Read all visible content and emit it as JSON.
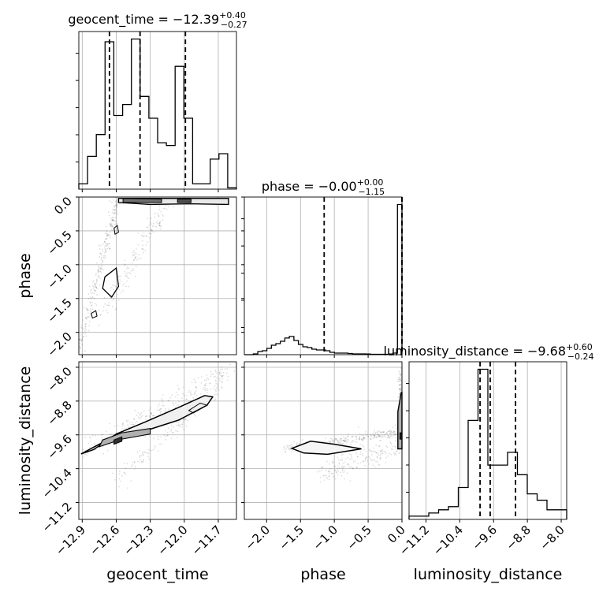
{
  "chart_data": {
    "type": "corner",
    "parameters": [
      "geocent_time",
      "phase",
      "luminosity_distance"
    ],
    "titles": [
      {
        "param": "geocent_time",
        "prefix": "geocent_time = ",
        "median": "−12.39",
        "plus": "+0.40",
        "minus": "−0.27"
      },
      {
        "param": "phase",
        "prefix": "phase = ",
        "median": "−0.00",
        "plus": "+0.00",
        "minus": "−1.15"
      },
      {
        "param": "luminosity_distance",
        "prefix": "luminosity_distance = ",
        "median": "−9.68",
        "plus": "+0.60",
        "minus": "−0.24"
      }
    ],
    "axis_labels": {
      "x": [
        "geocent_time",
        "phase",
        "luminosity_distance"
      ],
      "y": [
        "phase",
        "luminosity_distance"
      ]
    },
    "ranges": {
      "geocent_time": [
        -12.93,
        -11.54
      ],
      "phase": [
        -2.33,
        0.0
      ],
      "luminosity_distance": [
        -11.6,
        -7.87
      ]
    },
    "ticks": {
      "geocent_time": [
        {
          "v": -12.9,
          "t": "−12.9"
        },
        {
          "v": -12.6,
          "t": "−12.6"
        },
        {
          "v": -12.3,
          "t": "−12.3"
        },
        {
          "v": -12.0,
          "t": "−12.0"
        },
        {
          "v": -11.7,
          "t": "−11.7"
        }
      ],
      "phase": [
        {
          "v": -2.0,
          "t": "−2.0"
        },
        {
          "v": -1.5,
          "t": "−1.5"
        },
        {
          "v": -1.0,
          "t": "−1.0"
        },
        {
          "v": -0.5,
          "t": "−0.5"
        },
        {
          "v": 0.0,
          "t": "0.0"
        }
      ],
      "luminosity_distance": [
        {
          "v": -11.2,
          "t": "−11.2"
        },
        {
          "v": -10.4,
          "t": "−10.4"
        },
        {
          "v": -9.6,
          "t": "−9.6"
        },
        {
          "v": -8.8,
          "t": "−8.8"
        },
        {
          "v": -8.0,
          "t": "−8.0"
        }
      ]
    },
    "quantiles": {
      "geocent_time": [
        -12.66,
        -12.39,
        -11.99
      ],
      "phase": [
        -1.15,
        -0.0,
        0.0
      ],
      "luminosity_distance": [
        -9.92,
        -9.68,
        -9.08
      ]
    },
    "hist1d": {
      "geocent_time": {
        "counts": [
          0.2,
          1.2,
          2.0,
          5.4,
          2.7,
          3.1,
          5.5,
          3.4,
          2.6,
          1.7,
          1.6,
          4.5,
          2.6,
          0.2,
          0.2,
          1.1,
          1.3,
          0.05
        ]
      },
      "phase": {
        "counts": [
          0.0,
          0.0,
          0.1,
          0.4,
          0.5,
          0.8,
          1.2,
          1.4,
          1.7,
          2.1,
          2.3,
          1.8,
          1.3,
          1.0,
          0.9,
          0.7,
          0.6,
          0.6,
          0.5,
          0.3,
          0.2,
          0.2,
          0.2,
          0.15,
          0.1,
          0.1,
          0.1,
          0.08,
          0.05,
          0.05,
          0.05,
          0.05,
          0.08,
          0.2,
          19.0
        ]
      },
      "luminosity_distance": {
        "counts": [
          0.1,
          0.1,
          0.2,
          0.3,
          0.4,
          1.0,
          3.1,
          4.7,
          1.7,
          1.7,
          2.1,
          1.4,
          0.8,
          0.6,
          0.3,
          0.3
        ]
      }
    },
    "grid": true
  }
}
